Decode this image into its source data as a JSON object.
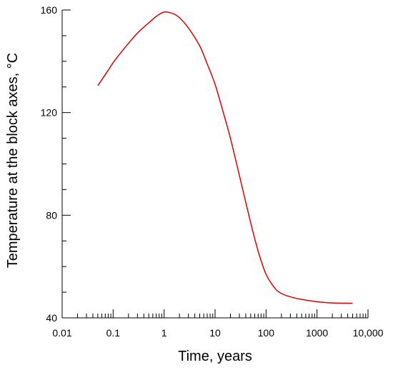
{
  "chart_data": {
    "type": "line",
    "title": "",
    "xlabel": "Time, years",
    "ylabel": "Temperature at the block axes, °C",
    "xscale": "log",
    "xlim": [
      0.01,
      10000
    ],
    "ylim": [
      40,
      160
    ],
    "xticks": [
      {
        "value": 0.01,
        "label": "0.01"
      },
      {
        "value": 0.1,
        "label": "0.1"
      },
      {
        "value": 1,
        "label": "1"
      },
      {
        "value": 10,
        "label": "10"
      },
      {
        "value": 100,
        "label": "100"
      },
      {
        "value": 1000,
        "label": "1000"
      },
      {
        "value": 10000,
        "label": "10,000"
      }
    ],
    "yticks": [
      {
        "value": 40,
        "label": "40"
      },
      {
        "value": 80,
        "label": "80"
      },
      {
        "value": 120,
        "label": "120"
      },
      {
        "value": 160,
        "label": "160"
      }
    ],
    "grid": false,
    "series": [
      {
        "color": "#e00000",
        "x": [
          0.05,
          0.08,
          0.1,
          0.15,
          0.2,
          0.3,
          0.5,
          0.7,
          1,
          1.5,
          2,
          3,
          5,
          7,
          10,
          15,
          20,
          30,
          50,
          70,
          100,
          150,
          200,
          300,
          500,
          1000,
          2000,
          5000
        ],
        "y": [
          130.5,
          136.5,
          139.5,
          144,
          147,
          151,
          155,
          157.5,
          159.2,
          158.6,
          157,
          153,
          146,
          139,
          131,
          119,
          110,
          95.5,
          77,
          66,
          57,
          51.5,
          49.5,
          48.2,
          47.2,
          46.3,
          45.8,
          45.7
        ]
      }
    ]
  }
}
